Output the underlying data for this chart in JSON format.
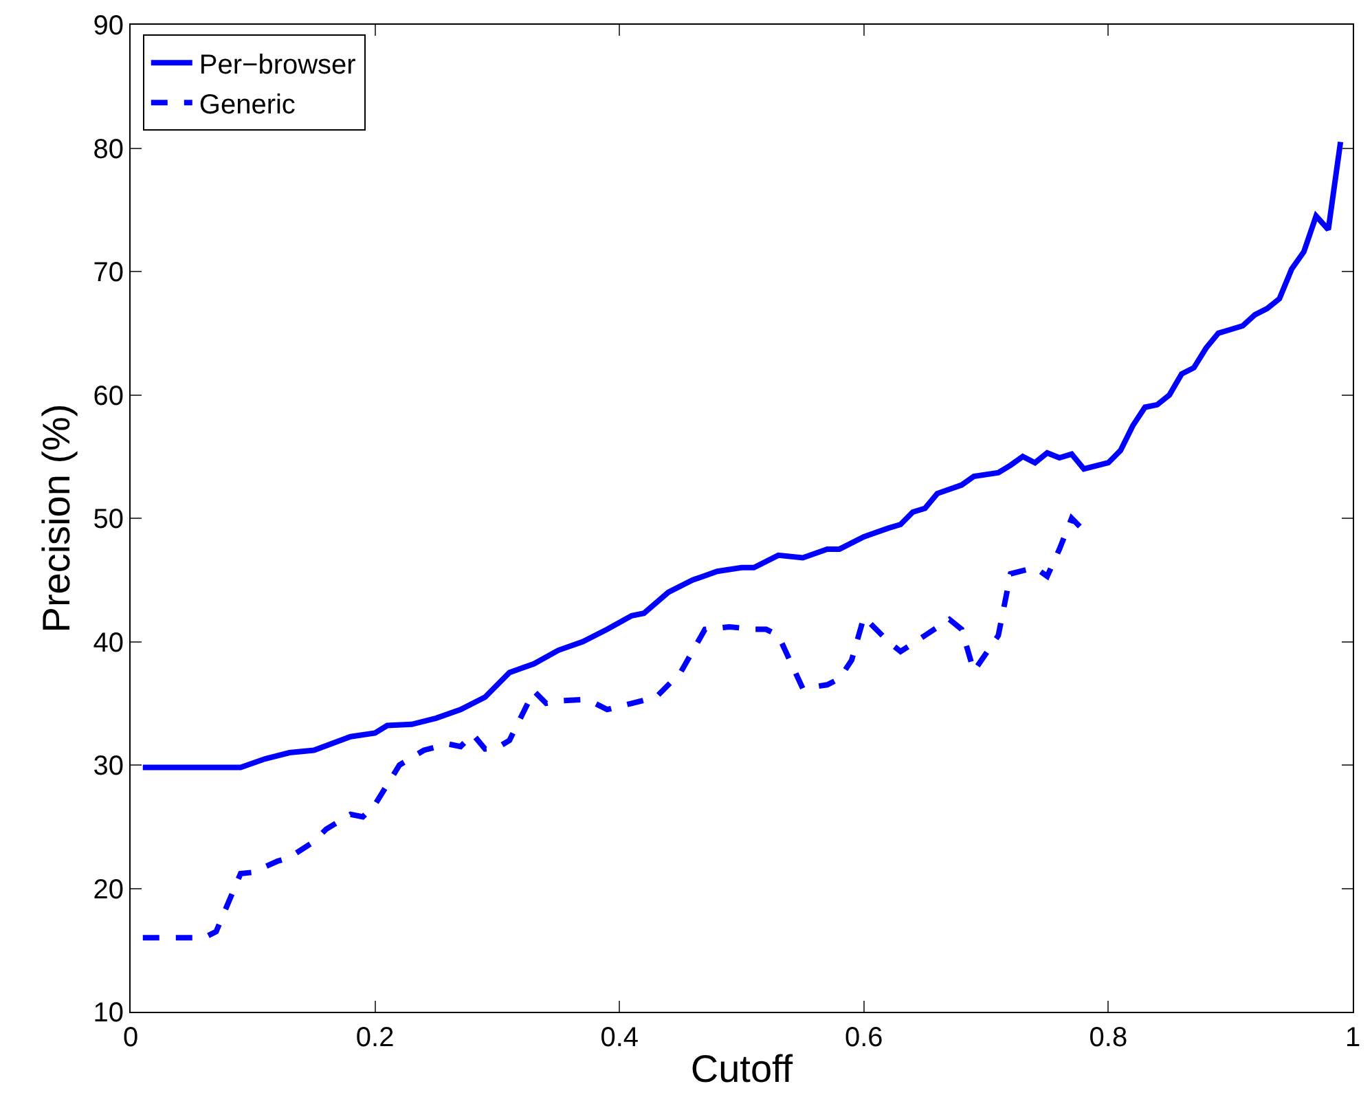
{
  "chart_data": {
    "type": "line",
    "xlabel": "Cutoff",
    "ylabel": "Precision (%)",
    "xlim": [
      0,
      1
    ],
    "ylim": [
      10,
      90
    ],
    "xticks": [
      0,
      0.2,
      0.4,
      0.6,
      0.8,
      1
    ],
    "yticks": [
      10,
      20,
      30,
      40,
      50,
      60,
      70,
      80,
      90
    ],
    "legend": "top left",
    "marker": "none",
    "series": [
      {
        "name": "Per−browser",
        "color": "#0000ff",
        "line_style": "solid",
        "x": [
          0.01,
          0.09,
          0.11,
          0.13,
          0.15,
          0.18,
          0.2,
          0.21,
          0.23,
          0.25,
          0.27,
          0.29,
          0.31,
          0.33,
          0.35,
          0.37,
          0.39,
          0.41,
          0.42,
          0.44,
          0.46,
          0.48,
          0.5,
          0.51,
          0.53,
          0.55,
          0.57,
          0.58,
          0.6,
          0.62,
          0.63,
          0.64,
          0.65,
          0.66,
          0.68,
          0.69,
          0.71,
          0.72,
          0.73,
          0.74,
          0.75,
          0.76,
          0.77,
          0.78,
          0.8,
          0.81,
          0.82,
          0.83,
          0.84,
          0.85,
          0.86,
          0.87,
          0.88,
          0.89,
          0.91,
          0.92,
          0.93,
          0.94,
          0.95,
          0.96,
          0.97,
          0.98,
          0.99
        ],
        "values": [
          29.8,
          29.8,
          30.5,
          31,
          31.2,
          32.3,
          32.6,
          33.2,
          33.3,
          33.8,
          34.5,
          35.5,
          37.5,
          38.2,
          39.3,
          40,
          41,
          42.1,
          42.3,
          44,
          45,
          45.7,
          46,
          46,
          47,
          46.8,
          47.5,
          47.5,
          48.5,
          49.2,
          49.5,
          50.5,
          50.8,
          52,
          52.7,
          53.4,
          53.7,
          54.3,
          55,
          54.5,
          55.3,
          54.9,
          55.2,
          54,
          54.5,
          55.5,
          57.5,
          59,
          59.2,
          60,
          61.7,
          62.2,
          63.8,
          65,
          65.6,
          66.5,
          67,
          67.8,
          70.2,
          71.6,
          74.5,
          73.4,
          80.5
        ]
      },
      {
        "name": "Generic",
        "color": "#0000ff",
        "line_style": "dashed",
        "x": [
          0.01,
          0.06,
          0.07,
          0.09,
          0.1,
          0.12,
          0.13,
          0.15,
          0.16,
          0.18,
          0.19,
          0.2,
          0.22,
          0.24,
          0.26,
          0.27,
          0.28,
          0.29,
          0.3,
          0.31,
          0.33,
          0.34,
          0.35,
          0.37,
          0.38,
          0.39,
          0.41,
          0.43,
          0.45,
          0.47,
          0.49,
          0.51,
          0.52,
          0.53,
          0.55,
          0.57,
          0.58,
          0.59,
          0.6,
          0.62,
          0.63,
          0.65,
          0.67,
          0.68,
          0.69,
          0.71,
          0.72,
          0.74,
          0.75,
          0.76,
          0.77,
          0.78
        ],
        "values": [
          16,
          16,
          16.5,
          21.2,
          21.3,
          22.2,
          22.5,
          23.8,
          24.8,
          26,
          25.8,
          26.8,
          30,
          31.2,
          31.7,
          31.5,
          32.5,
          31.3,
          31.4,
          32,
          36,
          35,
          35.2,
          35.3,
          35,
          34.5,
          35,
          35.5,
          37.5,
          41,
          41.2,
          41,
          41,
          40.5,
          36.2,
          36.5,
          37,
          38.5,
          42,
          40,
          39.2,
          40.5,
          41.8,
          41,
          37.6,
          40.5,
          45.5,
          46,
          45.3,
          47.5,
          50,
          49
        ]
      }
    ]
  }
}
